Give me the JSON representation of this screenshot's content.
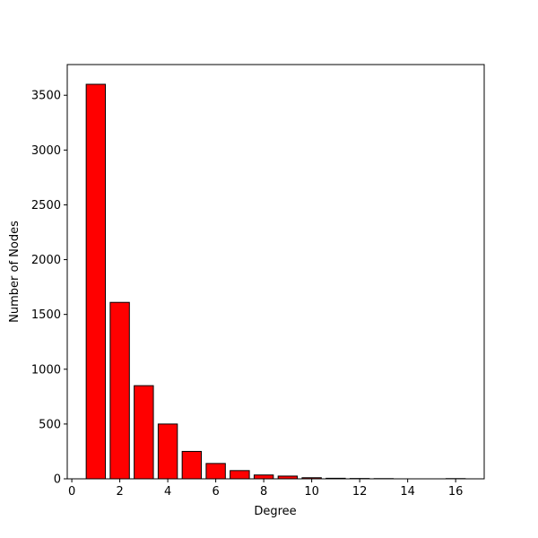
{
  "chart_data": {
    "type": "bar",
    "x_label": "Degree",
    "y_label": "Number of Nodes",
    "x": [
      1,
      2,
      3,
      4,
      5,
      6,
      7,
      8,
      9,
      10,
      11,
      12,
      13,
      16
    ],
    "values": [
      3600,
      1610,
      850,
      500,
      250,
      140,
      75,
      35,
      25,
      10,
      5,
      3,
      2,
      2
    ],
    "color": "#ff0000",
    "edge_color": "#000000",
    "xlim": [
      -0.19,
      17.19
    ],
    "xticks": [
      0,
      2,
      4,
      6,
      8,
      10,
      12,
      14,
      16
    ],
    "ylim": [
      0,
      3780
    ],
    "yticks": [
      0,
      500,
      1000,
      1500,
      2000,
      2500,
      3000,
      3500
    ],
    "grid": false
  }
}
